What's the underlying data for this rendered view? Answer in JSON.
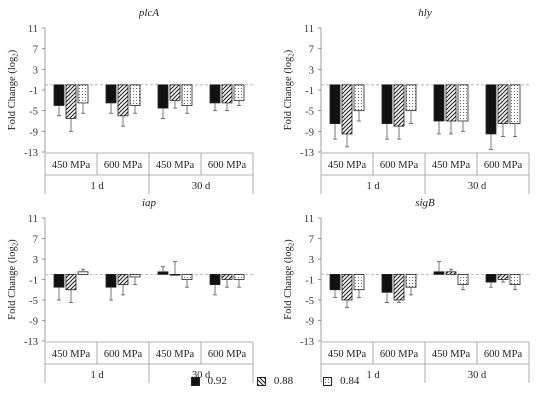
{
  "chart_data": [
    {
      "type": "bar",
      "title": "plcA",
      "ylabel": "Fold Change (log",
      "ylabel_sub": "2",
      "ylabel_end": ")",
      "ylim": [
        -13,
        11
      ],
      "yticks": [
        11,
        7,
        3,
        -1,
        -5,
        -9,
        -13
      ],
      "categories": [
        "450 MPa",
        "600 MPa",
        "450 MPa",
        "600 MPa"
      ],
      "groups": [
        "1 d",
        "30 d"
      ],
      "series": [
        {
          "name": "0.92",
          "values": [
            -4.0,
            -3.5,
            -4.5,
            -3.5
          ],
          "errors": [
            2.0,
            2.0,
            2.0,
            1.5
          ]
        },
        {
          "name": "0.88",
          "values": [
            -6.5,
            -6.0,
            -3.0,
            -3.5
          ],
          "errors": [
            2.5,
            2.0,
            1.5,
            1.5
          ]
        },
        {
          "name": "0.84",
          "values": [
            -3.5,
            -4.0,
            -4.0,
            -3.0
          ],
          "errors": [
            2.0,
            1.5,
            1.5,
            1.0
          ]
        }
      ]
    },
    {
      "type": "bar",
      "title": "hly",
      "ylabel": "Fold Change (log",
      "ylabel_sub": "2",
      "ylabel_end": ")",
      "ylim": [
        -13,
        11
      ],
      "yticks": [
        11,
        7,
        3,
        -1,
        -5,
        -9,
        -13
      ],
      "categories": [
        "450 MPa",
        "600 MPa",
        "450 MPa",
        "600 MPa"
      ],
      "groups": [
        "1 d",
        "30 d"
      ],
      "series": [
        {
          "name": "0.92",
          "values": [
            -7.5,
            -7.5,
            -7.0,
            -9.5
          ],
          "errors": [
            3.0,
            3.0,
            2.5,
            3.0
          ]
        },
        {
          "name": "0.88",
          "values": [
            -9.5,
            -8.0,
            -7.0,
            -7.5
          ],
          "errors": [
            2.5,
            2.5,
            2.5,
            2.5
          ]
        },
        {
          "name": "0.84",
          "values": [
            -5.0,
            -5.0,
            -7.0,
            -7.5
          ],
          "errors": [
            2.0,
            2.5,
            2.0,
            2.5
          ]
        }
      ]
    },
    {
      "type": "bar",
      "title": "iap",
      "ylabel": "Fold Change (log",
      "ylabel_sub": "2",
      "ylabel_end": ")",
      "ylim": [
        -13,
        11
      ],
      "yticks": [
        11,
        7,
        3,
        -1,
        -5,
        -9,
        -13
      ],
      "categories": [
        "450 MPa",
        "600 MPa",
        "450 MPa",
        "600 MPa"
      ],
      "groups": [
        "1 d",
        "30 d"
      ],
      "series": [
        {
          "name": "0.92",
          "values": [
            -2.5,
            -2.5,
            0.5,
            -2.0
          ],
          "errors": [
            2.5,
            2.5,
            1.0,
            2.0
          ]
        },
        {
          "name": "0.88",
          "values": [
            -3.0,
            -2.0,
            0.0,
            -1.0
          ],
          "errors": [
            2.5,
            2.0,
            2.5,
            1.5
          ]
        },
        {
          "name": "0.84",
          "values": [
            0.5,
            -0.5,
            -1.0,
            -1.0
          ],
          "errors": [
            0.5,
            1.5,
            1.5,
            1.5
          ]
        }
      ]
    },
    {
      "type": "bar",
      "title": "sigB",
      "ylabel": "Fold Change (log",
      "ylabel_sub": "2",
      "ylabel_end": ")",
      "ylim": [
        -13,
        11
      ],
      "yticks": [
        11,
        7,
        3,
        -1,
        -5,
        -9,
        -13
      ],
      "categories": [
        "450 MPa",
        "600 MPa",
        "450 MPa",
        "600 MPa"
      ],
      "groups": [
        "1 d",
        "30 d"
      ],
      "series": [
        {
          "name": "0.92",
          "values": [
            -3.0,
            -3.5,
            0.5,
            -1.5
          ],
          "errors": [
            1.5,
            2.0,
            2.0,
            1.0
          ]
        },
        {
          "name": "0.88",
          "values": [
            -5.0,
            -5.0,
            0.5,
            -1.0
          ],
          "errors": [
            1.5,
            0.5,
            0.5,
            0.5
          ]
        },
        {
          "name": "0.84",
          "values": [
            -3.0,
            -2.5,
            -2.0,
            -2.0
          ],
          "errors": [
            1.5,
            1.5,
            1.0,
            1.0
          ]
        }
      ]
    }
  ],
  "legend": {
    "items": [
      {
        "label": "0.92",
        "pattern": "solid"
      },
      {
        "label": "0.88",
        "pattern": "diagonal"
      },
      {
        "label": "0.84",
        "pattern": "dotted"
      }
    ]
  }
}
